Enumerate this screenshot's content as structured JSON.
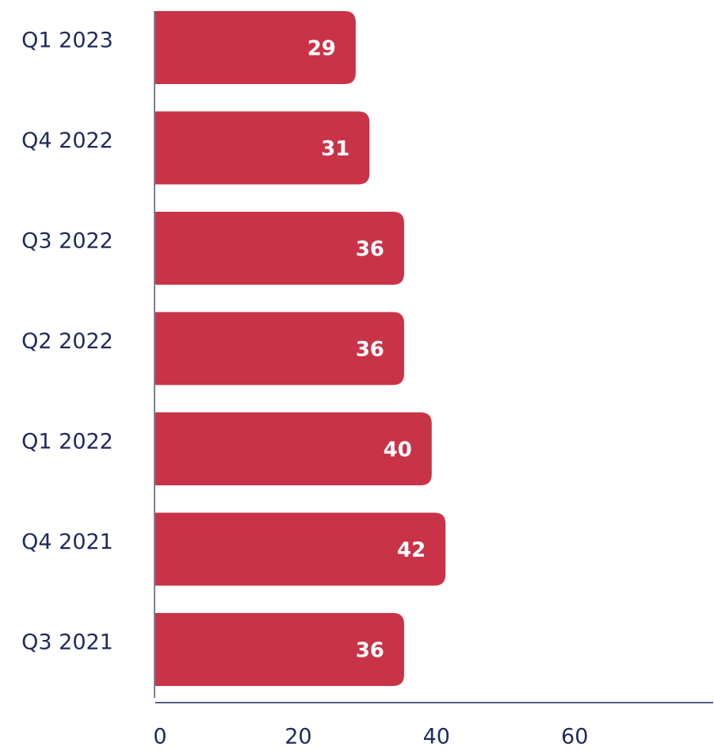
{
  "chart_data": {
    "type": "barh",
    "categories": [
      "Q1 2023",
      "Q4 2022",
      "Q3 2022",
      "Q2 2022",
      "Q1 2022",
      "Q4 2021",
      "Q3 2021"
    ],
    "values": [
      29,
      31,
      36,
      36,
      40,
      42,
      36
    ],
    "color": "#c93347",
    "xlim": [
      0,
      80
    ],
    "xticks": [
      0,
      20,
      40,
      60
    ]
  }
}
